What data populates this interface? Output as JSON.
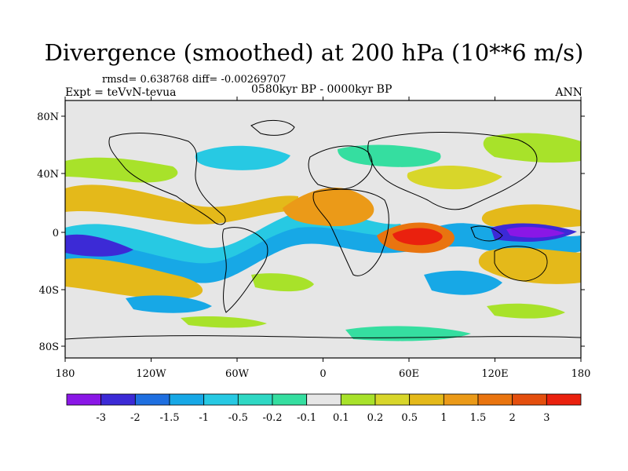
{
  "header": {
    "title": "Divergence (smoothed) at 200 hPa (10**6 m/s)",
    "stats": "rmsd= 0.638768 diff= -0.00269707",
    "experiment": "Expt = teVvN-tevua",
    "period": "0580kyr BP - 0000kyr BP",
    "season": "ANN"
  },
  "map": {
    "lat_ticks": [
      "80N",
      "40N",
      "0",
      "40S",
      "80S"
    ],
    "lon_ticks": [
      "180",
      "120W",
      "60W",
      "0",
      "60E",
      "120E",
      "180"
    ],
    "background_color": "#e6e6e6"
  },
  "colorbar": {
    "colors": [
      "#8a17e6",
      "#3c2ad6",
      "#1f6fe0",
      "#17a8e6",
      "#27c9e3",
      "#2fd8c4",
      "#35dea0",
      "#e6e6e6",
      "#a8e22a",
      "#d8d62a",
      "#e4b91a",
      "#eb9a18",
      "#e9740f",
      "#e44f0e",
      "#ea210e"
    ],
    "labels": [
      "-3",
      "-2",
      "-1.5",
      "-1",
      "-0.5",
      "-0.2",
      "-0.1",
      "0.1",
      "0.2",
      "0.5",
      "1",
      "1.5",
      "2",
      "3"
    ]
  }
}
